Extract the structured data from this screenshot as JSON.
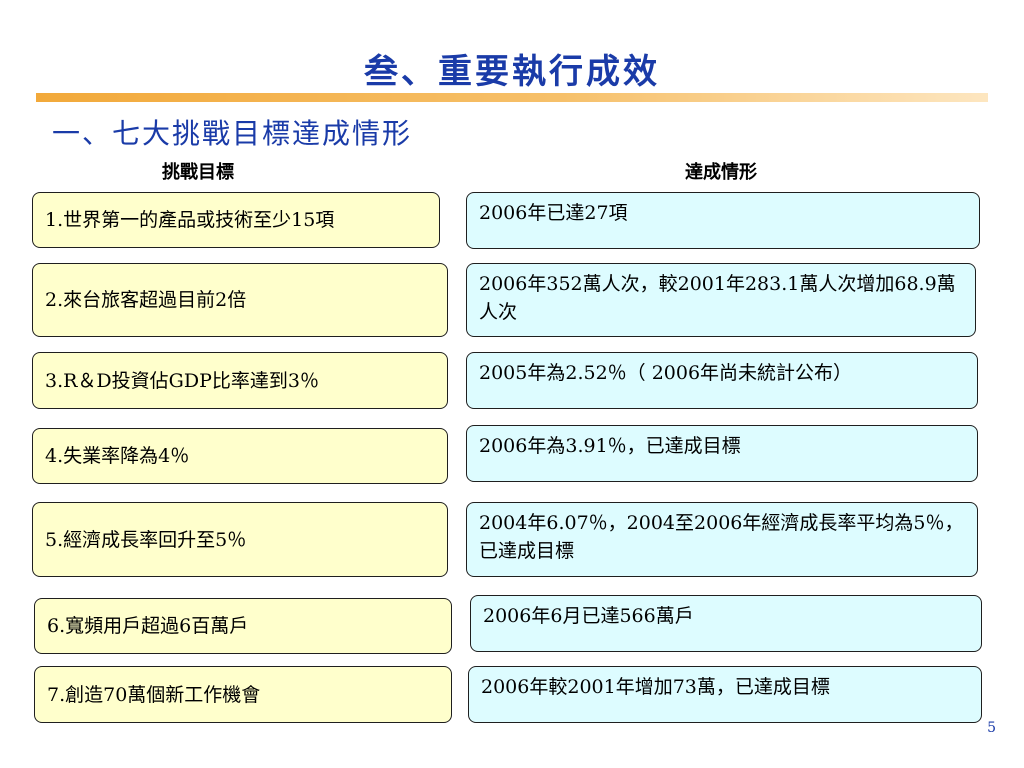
{
  "slide": {
    "title": "叁、重要執行成效",
    "subtitle": "一、七大挑戰目標達成情形",
    "page_number": "5"
  },
  "columns": {
    "goal_header": "挑戰目標",
    "status_header": "達成情形"
  },
  "rows": [
    {
      "goal": "1.世界第一的產品或技術至少15項",
      "status": "2006年已達27項"
    },
    {
      "goal": "2.來台旅客超過目前2倍",
      "status": "2006年352萬人次，較2001年283.1萬人次增加68.9萬人次"
    },
    {
      "goal": "3.R＆D投資佔GDP比率達到3％",
      "status": "2005年為2.52％（ 2006年尚未統計公布）"
    },
    {
      "goal": "4.失業率降為4％",
      "status": "2006年為3.91％，已達成目標"
    },
    {
      "goal": "5.經濟成長率回升至5％",
      "status": "2004年6.07％，2004至2006年經濟成長率平均為5％，已達成目標"
    },
    {
      "goal": "6.寬頻用戶超過6百萬戶",
      "status": "2006年6月已達566萬戶"
    },
    {
      "goal": "7.創造70萬個新工作機會",
      "status": "2006年較2001年增加73萬，已達成目標"
    }
  ]
}
